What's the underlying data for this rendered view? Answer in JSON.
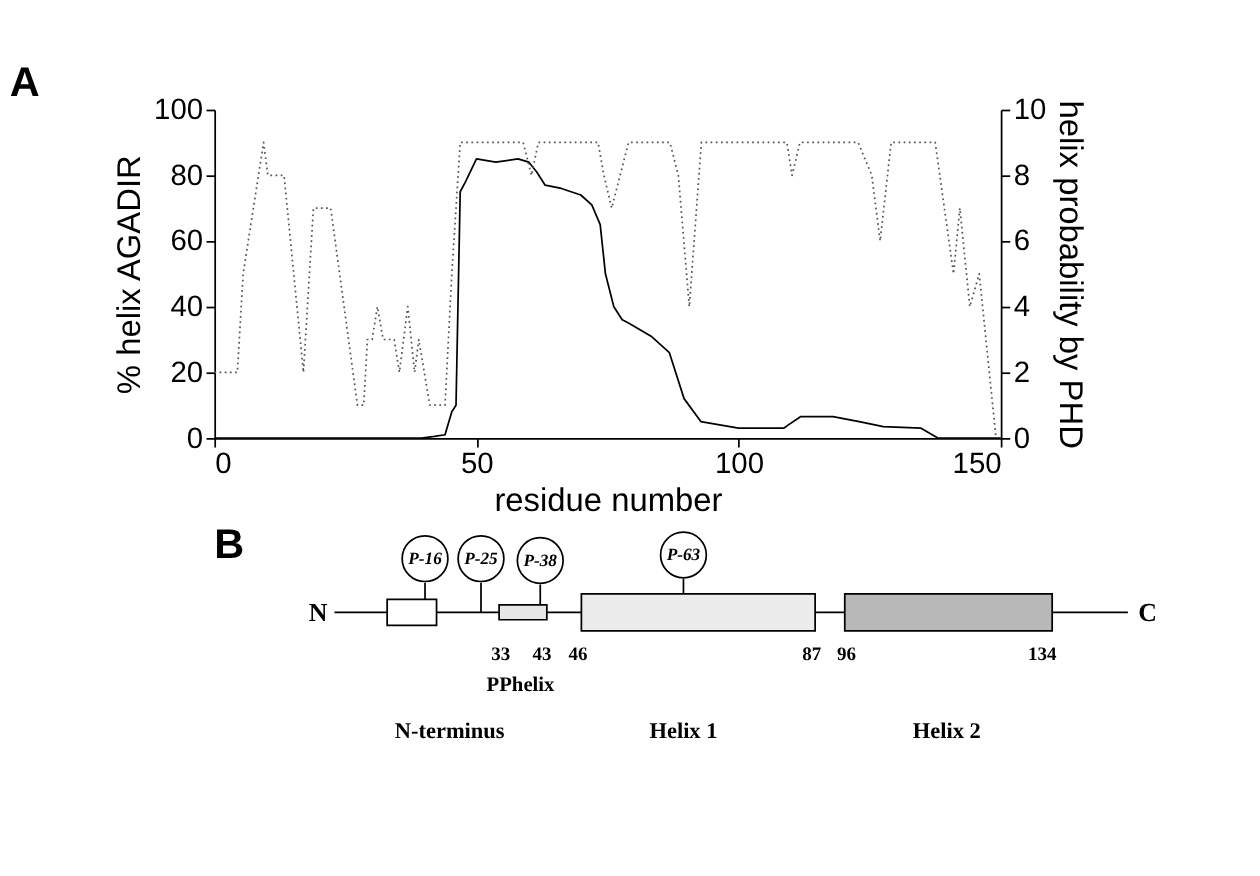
{
  "chart_data": [
    {
      "type": "line",
      "title": "A",
      "xlabel": "residue number",
      "ylabel": "% helix AGADIR",
      "y2label": "helix probability by PHD",
      "xlim": [
        0,
        150
      ],
      "xticks": [
        0,
        50,
        100,
        150
      ],
      "ylim": [
        0,
        100
      ],
      "yticks": [
        0,
        20,
        40,
        60,
        80,
        100
      ],
      "y2lim": [
        0,
        10
      ],
      "y2ticks": [
        0,
        2,
        4,
        6,
        8,
        10
      ],
      "grid": false,
      "marker": "none",
      "series": [
        {
          "color": "#000000",
          "line_style": "solid",
          "x": [
            0,
            39.5,
            42,
            44,
            45.3,
            46.1,
            46.9,
            47.9,
            50,
            53.7,
            57.9,
            60,
            61.5,
            63.1,
            66.2,
            69.9,
            72,
            73.6,
            74.6,
            76.2,
            77.8,
            79,
            83.3,
            86.8,
            89.6,
            92.8,
            100,
            108.6,
            109.5,
            111.8,
            118,
            123,
            127.6,
            134.8,
            138,
            150
          ],
          "values": [
            0,
            0,
            0.5,
            1,
            8,
            10,
            75,
            78,
            85,
            84,
            85,
            84,
            81,
            77,
            76,
            74,
            71,
            65,
            50,
            40,
            36,
            35,
            31,
            26,
            12,
            5,
            3,
            3,
            4,
            6.5,
            6.5,
            5,
            3.5,
            3,
            0,
            0
          ]
        },
        {
          "color": "#555555",
          "line_style": "dotted",
          "axis": "y2",
          "x": [
            0,
            4.4,
            5.5,
            9.4,
            10.2,
            13.3,
            17,
            18.9,
            22.2,
            27.3,
            28.5,
            29.2,
            30.1,
            31.1,
            32.2,
            34.3,
            35.3,
            36.9,
            38.2,
            39,
            41.1,
            44,
            45.3,
            46.9,
            58.9,
            60.5,
            61.8,
            73.2,
            74.3,
            75.8,
            77.4,
            79,
            86.9,
            88.5,
            90.6,
            92.9,
            109.2,
            110.2,
            111.7,
            122.8,
            125.4,
            127,
            129.1,
            137.5,
            141,
            142.2,
            144.1,
            145.9,
            149.1
          ],
          "values": [
            2,
            2,
            5,
            9,
            8,
            8,
            2,
            7,
            7,
            1,
            1,
            3,
            3,
            4,
            3,
            3,
            2,
            4,
            2,
            3,
            1,
            1,
            5,
            9,
            9,
            8,
            9,
            9,
            8,
            7,
            8,
            9,
            9,
            8,
            4,
            9,
            9,
            8,
            9,
            9,
            8,
            6,
            9,
            9,
            5,
            7,
            4,
            5,
            0
          ]
        }
      ]
    },
    {
      "type": "other",
      "title": "B",
      "annotations": [
        "N",
        "C",
        "P-16",
        "P-25",
        "P-38",
        "P-63",
        "33",
        "43",
        "46",
        "87",
        "96",
        "134",
        "PPhelix",
        "N-terminus",
        "Helix 1",
        "Helix 2"
      ]
    }
  ]
}
